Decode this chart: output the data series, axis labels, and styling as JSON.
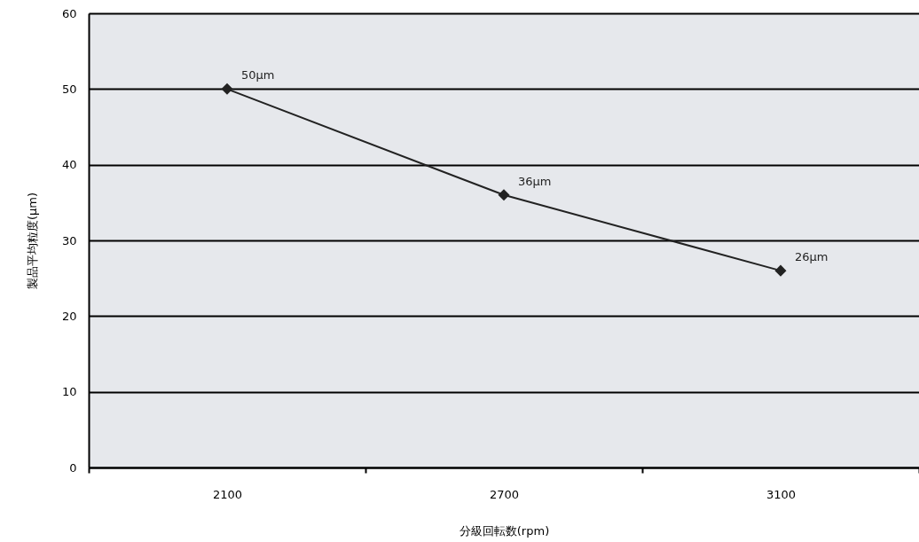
{
  "chart_data": {
    "type": "line",
    "categories": [
      "2100",
      "2700",
      "3100"
    ],
    "values": [
      50,
      36,
      26
    ],
    "value_labels": [
      "50μm",
      "36μm",
      "26μm"
    ],
    "color": "#222222",
    "marker": "diamond",
    "xlabel": "分級回転数(rpm)",
    "ylabel": "製品平均粒度(μm)",
    "ylim": [
      0,
      60
    ],
    "yticks": [
      0,
      10,
      20,
      30,
      40,
      50,
      60
    ],
    "grid": "y"
  }
}
